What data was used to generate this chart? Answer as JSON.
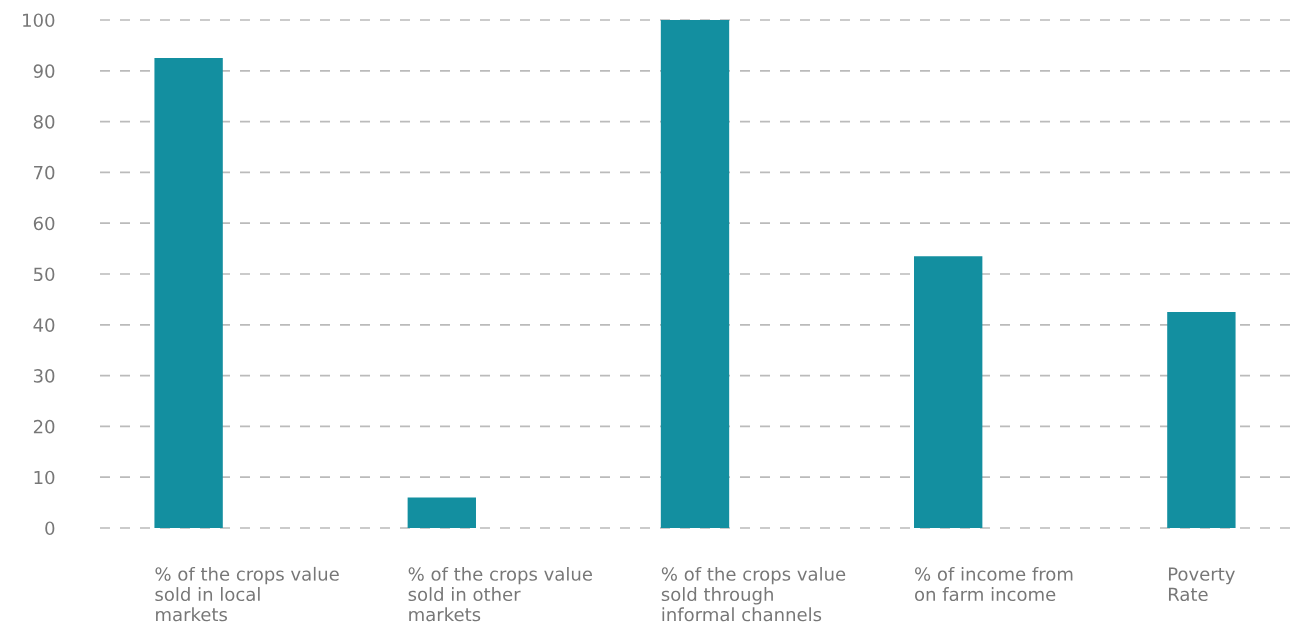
{
  "chart_data": {
    "type": "bar",
    "categories": [
      "% of the crops value\nsold in local\nmarkets",
      "% of the crops value\nsold in other\nmarkets",
      "% of the crops value\nsold through\ninformal channels",
      "% of income from\non farm income",
      "Poverty\nRate"
    ],
    "values": [
      92.5,
      6,
      100,
      53.5,
      42.5
    ],
    "color": "#138fa0",
    "ylim": [
      0,
      100
    ],
    "yticks": [
      0,
      10,
      20,
      30,
      40,
      50,
      60,
      70,
      80,
      90,
      100
    ],
    "grid": "y"
  }
}
